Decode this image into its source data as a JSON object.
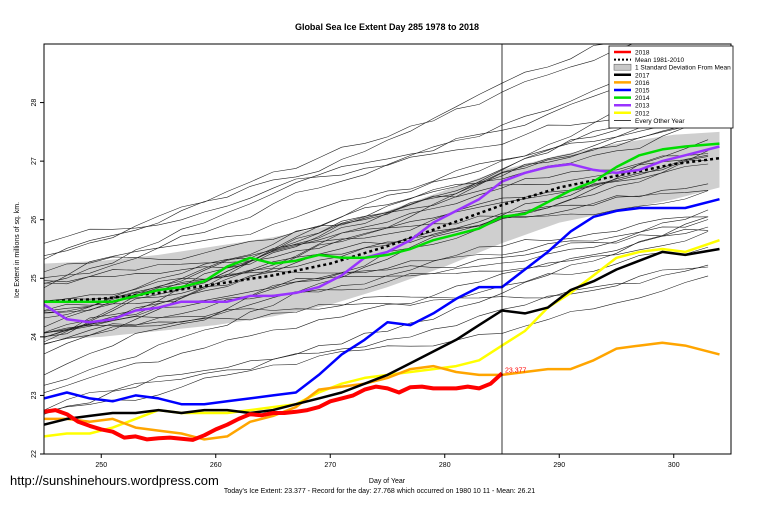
{
  "footer": {
    "url": "http://sunshinehours.wordpress.com",
    "stats": "Today's Ice Extent: 23.377 - Record for the day: 27.768 which occurred on 1980 10 11 - Mean: 26.21"
  },
  "chart_data": {
    "type": "line",
    "title": "Global Sea Ice Extent Day 285 1978 to 2018",
    "xlabel": "Day of Year",
    "ylabel": "Ice Extent in millions of sq. km.",
    "xlim": [
      245,
      305
    ],
    "ylim": [
      22,
      29
    ],
    "xticks": [
      250,
      260,
      270,
      280,
      290,
      300
    ],
    "yticks": [
      22,
      23,
      24,
      25,
      26,
      27,
      28
    ],
    "current_day": 285,
    "current_value_label": "23.377",
    "legend_position": "top-right",
    "legend": [
      {
        "label": "2018",
        "color": "#ff0000",
        "style": "thick"
      },
      {
        "label": "Mean 1981-2010",
        "color": "#000000",
        "style": "dotted"
      },
      {
        "label": "1 Standard Deviation From Mean",
        "color": "#c8c8c8",
        "style": "box"
      },
      {
        "label": "2017",
        "color": "#000000",
        "style": "thick"
      },
      {
        "label": "2016",
        "color": "#ffa500",
        "style": "thick"
      },
      {
        "label": "2015",
        "color": "#0000ff",
        "style": "thick"
      },
      {
        "label": "2014",
        "color": "#00dd00",
        "style": "thick"
      },
      {
        "label": "2013",
        "color": "#9933ff",
        "style": "thick"
      },
      {
        "label": "2012",
        "color": "#ffff00",
        "style": "thick"
      },
      {
        "label": "Every Other Year",
        "color": "#000000",
        "style": "thin"
      }
    ],
    "mean": {
      "x": [
        245,
        250,
        255,
        260,
        265,
        270,
        275,
        280,
        285,
        290,
        295,
        300,
        304
      ],
      "y": [
        24.6,
        24.65,
        24.75,
        24.9,
        25.05,
        25.25,
        25.55,
        25.9,
        26.25,
        26.55,
        26.75,
        26.95,
        27.05
      ]
    },
    "std_band": {
      "x": [
        245,
        250,
        255,
        260,
        265,
        270,
        275,
        280,
        285,
        290,
        295,
        300,
        304
      ],
      "upper": [
        25.25,
        25.3,
        25.4,
        25.55,
        25.7,
        25.9,
        26.15,
        26.5,
        26.85,
        27.1,
        27.3,
        27.45,
        27.5
      ],
      "lower": [
        23.95,
        24.0,
        24.1,
        24.2,
        24.35,
        24.55,
        24.85,
        25.2,
        25.6,
        25.95,
        26.15,
        26.35,
        26.55
      ]
    },
    "series": [
      {
        "name": "2018",
        "color": "#ff0000",
        "width": 4,
        "x": [
          245,
          246,
          247,
          248,
          249,
          250,
          251,
          252,
          253,
          254,
          255,
          256,
          257,
          258,
          259,
          260,
          261,
          262,
          263,
          264,
          265,
          266,
          267,
          268,
          269,
          270,
          271,
          272,
          273,
          274,
          275,
          276,
          277,
          278,
          279,
          280,
          281,
          282,
          283,
          284,
          285
        ],
        "y": [
          22.72,
          22.75,
          22.68,
          22.55,
          22.48,
          22.42,
          22.38,
          22.28,
          22.3,
          22.25,
          22.27,
          22.28,
          22.26,
          22.24,
          22.32,
          22.42,
          22.5,
          22.6,
          22.68,
          22.66,
          22.7,
          22.7,
          22.72,
          22.75,
          22.8,
          22.9,
          22.95,
          23.0,
          23.1,
          23.15,
          23.12,
          23.05,
          23.14,
          23.15,
          23.12,
          23.12,
          23.12,
          23.15,
          23.12,
          23.2,
          23.377
        ]
      },
      {
        "name": "2012",
        "color": "#ffff00",
        "width": 2.5,
        "x": [
          245,
          247,
          249,
          251,
          253,
          255,
          257,
          259,
          261,
          263,
          265,
          267,
          269,
          271,
          273,
          275,
          277,
          279,
          281,
          283,
          285,
          287,
          289,
          291,
          293,
          295,
          297,
          299,
          301,
          304
        ],
        "y": [
          22.3,
          22.35,
          22.35,
          22.45,
          22.6,
          22.75,
          22.7,
          22.7,
          22.7,
          22.75,
          22.8,
          22.85,
          23.05,
          23.2,
          23.3,
          23.35,
          23.4,
          23.45,
          23.5,
          23.6,
          23.85,
          24.1,
          24.5,
          24.75,
          25.05,
          25.35,
          25.45,
          25.5,
          25.45,
          25.65
        ]
      },
      {
        "name": "2016",
        "color": "#ffa500",
        "width": 2.5,
        "x": [
          245,
          247,
          249,
          251,
          253,
          255,
          257,
          259,
          261,
          263,
          265,
          267,
          269,
          271,
          273,
          275,
          277,
          279,
          281,
          283,
          285,
          287,
          289,
          291,
          293,
          295,
          297,
          299,
          301,
          304
        ],
        "y": [
          22.6,
          22.6,
          22.55,
          22.6,
          22.45,
          22.4,
          22.35,
          22.25,
          22.3,
          22.55,
          22.65,
          22.8,
          23.1,
          23.15,
          23.2,
          23.3,
          23.45,
          23.5,
          23.4,
          23.35,
          23.35,
          23.4,
          23.45,
          23.45,
          23.6,
          23.8,
          23.85,
          23.9,
          23.85,
          23.7
        ]
      },
      {
        "name": "2017",
        "color": "#000000",
        "width": 2.5,
        "x": [
          245,
          247,
          249,
          251,
          253,
          255,
          257,
          259,
          261,
          263,
          265,
          267,
          269,
          271,
          273,
          275,
          277,
          279,
          281,
          283,
          285,
          287,
          289,
          291,
          293,
          295,
          297,
          299,
          301,
          304
        ],
        "y": [
          22.5,
          22.6,
          22.65,
          22.7,
          22.7,
          22.75,
          22.7,
          22.75,
          22.75,
          22.7,
          22.75,
          22.85,
          22.95,
          23.05,
          23.2,
          23.35,
          23.55,
          23.75,
          23.95,
          24.2,
          24.45,
          24.4,
          24.5,
          24.8,
          24.95,
          25.15,
          25.3,
          25.45,
          25.4,
          25.5
        ]
      },
      {
        "name": "2015",
        "color": "#0000ff",
        "width": 2.5,
        "x": [
          245,
          247,
          249,
          251,
          253,
          255,
          257,
          259,
          261,
          263,
          265,
          267,
          269,
          271,
          273,
          275,
          277,
          279,
          281,
          283,
          285,
          287,
          289,
          291,
          293,
          295,
          297,
          299,
          301,
          304
        ],
        "y": [
          22.95,
          23.05,
          22.95,
          22.9,
          23.0,
          22.95,
          22.85,
          22.85,
          22.9,
          22.95,
          23.0,
          23.05,
          23.35,
          23.7,
          23.95,
          24.25,
          24.2,
          24.4,
          24.65,
          24.85,
          24.85,
          25.15,
          25.45,
          25.8,
          26.05,
          26.15,
          26.2,
          26.2,
          26.2,
          26.35
        ]
      },
      {
        "name": "2013",
        "color": "#9933ff",
        "width": 2.5,
        "x": [
          245,
          247,
          249,
          251,
          253,
          255,
          257,
          259,
          261,
          263,
          265,
          267,
          269,
          271,
          273,
          275,
          277,
          279,
          281,
          283,
          285,
          287,
          289,
          291,
          293,
          295,
          297,
          299,
          301,
          304
        ],
        "y": [
          24.55,
          24.3,
          24.25,
          24.3,
          24.45,
          24.5,
          24.6,
          24.6,
          24.6,
          24.7,
          24.7,
          24.75,
          24.85,
          25.05,
          25.35,
          25.45,
          25.65,
          25.95,
          26.15,
          26.35,
          26.65,
          26.8,
          26.9,
          26.95,
          26.85,
          26.8,
          26.85,
          27.0,
          27.1,
          27.25
        ]
      },
      {
        "name": "2014",
        "color": "#00dd00",
        "width": 2.5,
        "x": [
          245,
          247,
          249,
          251,
          253,
          255,
          257,
          259,
          261,
          263,
          265,
          267,
          269,
          271,
          273,
          275,
          277,
          279,
          281,
          283,
          285,
          287,
          289,
          291,
          293,
          295,
          297,
          299,
          301,
          304
        ],
        "y": [
          24.6,
          24.6,
          24.6,
          24.6,
          24.7,
          24.8,
          24.85,
          24.95,
          25.2,
          25.35,
          25.25,
          25.3,
          25.4,
          25.35,
          25.35,
          25.4,
          25.5,
          25.65,
          25.75,
          25.85,
          26.05,
          26.1,
          26.3,
          26.5,
          26.65,
          26.9,
          27.1,
          27.2,
          27.25,
          27.3
        ]
      }
    ]
  }
}
